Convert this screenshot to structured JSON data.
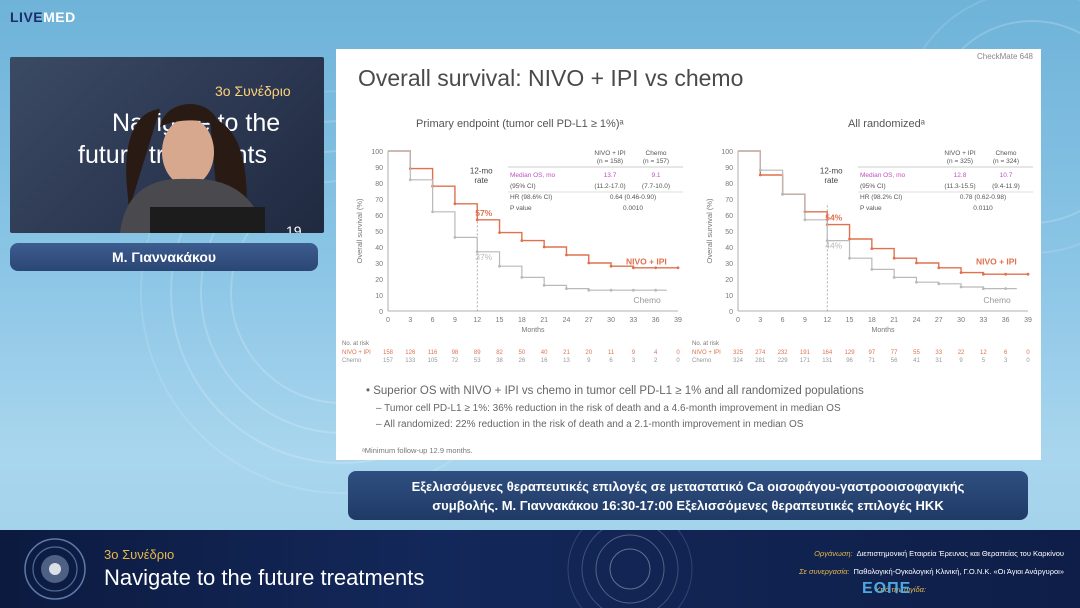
{
  "logo": {
    "part1": "LIVE",
    "part2": "MED"
  },
  "speaker": {
    "name": "Μ. Γιαννακάκου"
  },
  "camera_background": {
    "congress": "3ο Συνέδριο",
    "line1": "Navigate to the",
    "line2": "future treatments",
    "fragment": "19"
  },
  "slide": {
    "citation": "CheckMate 648",
    "title": "Overall survival: NIVO + IPI vs chemo",
    "panels": [
      {
        "title": "Primary endpoint (tumor cell PD-L1 ≥ 1%)ᵃ",
        "col_headers": [
          "NIVO + IPI\n(n = 158)",
          "Chemo\n(n = 157)"
        ],
        "rows": [
          {
            "label": "Median OS, mo",
            "a": "13.7",
            "b": "9.1"
          },
          {
            "label": "(95% CI)",
            "a": "(11.2-17.0)",
            "b": "(7.7-10.0)"
          },
          {
            "label": "HR (98.6% CI)",
            "a": "0.64 (0.46-0.90)",
            "b": ""
          },
          {
            "label": "P value",
            "a": "0.0010",
            "b": ""
          }
        ],
        "rate_label": "12-mo\nrate",
        "rate_nivo": "57%",
        "rate_chemo": "37%",
        "series_label_nivo": "NIVO + IPI",
        "series_label_chemo": "Chemo",
        "risk_nivo": [
          "158",
          "126",
          "116",
          "98",
          "89",
          "82",
          "50",
          "40",
          "21",
          "20",
          "11",
          "9",
          "4",
          "0"
        ],
        "risk_chemo": [
          "157",
          "133",
          "105",
          "72",
          "53",
          "38",
          "26",
          "16",
          "13",
          "9",
          "6",
          "3",
          "2",
          "0"
        ]
      },
      {
        "title": "All randomizedᵃ",
        "col_headers": [
          "NIVO + IPI\n(n = 325)",
          "Chemo\n(n = 324)"
        ],
        "rows": [
          {
            "label": "Median OS, mo",
            "a": "12.8",
            "b": "10.7"
          },
          {
            "label": "(95% CI)",
            "a": "(11.3-15.5)",
            "b": "(9.4-11.9)"
          },
          {
            "label": "HR (98.2% CI)",
            "a": "0.78 (0.62-0.98)",
            "b": ""
          },
          {
            "label": "P value",
            "a": "0.0110",
            "b": ""
          }
        ],
        "rate_label": "12-mo\nrate",
        "rate_nivo": "54%",
        "rate_chemo": "44%",
        "series_label_nivo": "NIVO + IPI",
        "series_label_chemo": "Chemo",
        "risk_nivo": [
          "325",
          "274",
          "232",
          "191",
          "164",
          "129",
          "97",
          "77",
          "55",
          "33",
          "22",
          "12",
          "6",
          "0"
        ],
        "risk_chemo": [
          "324",
          "281",
          "229",
          "171",
          "131",
          "96",
          "71",
          "56",
          "41",
          "31",
          "9",
          "5",
          "3",
          "0"
        ]
      }
    ],
    "y_axis_label": "Overall survival (%)",
    "x_axis_label": "Months",
    "risk_header": "No. at risk",
    "risk_row_labels": [
      "NIVO + IPI",
      "Chemo"
    ],
    "bullets": [
      "Superior OS with NIVO + IPI vs chemo in tumor cell PD-L1 ≥ 1% and all randomized populations",
      "Tumor cell PD-L1 ≥ 1%: 36% reduction in the risk of death and a 4.6-month improvement in median OS",
      "All randomized: 22% reduction in the risk of death and a 2.1-month improvement in median OS"
    ],
    "footnote": "ᵃMinimum follow-up 12.9 months."
  },
  "ticker": {
    "line1": "Εξελισσόμενες θεραπευτικές επιλογές σε μεταστατικό Ca οισοφάγου-γαστροοισοφαγικής",
    "line2": "συμβολής. Μ. Γιαννακάκου 16:30-17:00 Εξελισσόμενες θεραπευτικές επιλογές ΗΚΚ"
  },
  "banner": {
    "congress": "3ο Συνέδριο",
    "title": "Navigate to the future treatments",
    "organizer_label": "Οργάνωση:",
    "organizer": "Διεπιστημονική Εταιρεία Έρευνας και Θεραπείας του Καρκίνου",
    "partner_label": "Σε συνεργασία:",
    "partner": "Παθολογική-Ογκολογική Κλινική, Γ.Ο.Ν.Κ. «Οι Άγιοι Ανάργυροι»",
    "auspices_label": "Υπό την αιγίδα:",
    "auspices_logo": "ΕΟΠΕ"
  },
  "colors": {
    "nivo": "#e0714f",
    "chemo": "#b9b9b9",
    "highlight": "#c04fc0",
    "banner_accent": "#e7b84a"
  },
  "chart_data": [
    {
      "type": "line",
      "title": "Primary endpoint (tumor cell PD-L1 ≥ 1%)ᵃ",
      "xlabel": "Months",
      "ylabel": "Overall survival (%)",
      "xlim": [
        0,
        39
      ],
      "ylim": [
        0,
        100
      ],
      "x": [
        0,
        3,
        6,
        9,
        12,
        15,
        18,
        21,
        24,
        27,
        30,
        33,
        36,
        39
      ],
      "series": [
        {
          "name": "NIVO + IPI",
          "values": [
            100,
            89,
            78,
            67,
            57,
            49,
            44,
            40,
            35,
            30,
            28,
            27,
            27,
            27
          ]
        },
        {
          "name": "Chemo",
          "values": [
            100,
            82,
            62,
            46,
            37,
            28,
            21,
            16,
            14,
            13,
            13,
            13,
            13,
            null
          ]
        }
      ]
    },
    {
      "type": "line",
      "title": "All randomizedᵃ",
      "xlabel": "Months",
      "ylabel": "Overall survival (%)",
      "xlim": [
        0,
        39
      ],
      "ylim": [
        0,
        100
      ],
      "x": [
        0,
        3,
        6,
        9,
        12,
        15,
        18,
        21,
        24,
        27,
        30,
        33,
        36,
        39
      ],
      "series": [
        {
          "name": "NIVO + IPI",
          "values": [
            100,
            85,
            73,
            62,
            54,
            45,
            39,
            33,
            30,
            27,
            24,
            23,
            23,
            23
          ]
        },
        {
          "name": "Chemo",
          "values": [
            100,
            88,
            73,
            57,
            44,
            33,
            26,
            21,
            18,
            17,
            15,
            14,
            14,
            null
          ]
        }
      ]
    }
  ]
}
